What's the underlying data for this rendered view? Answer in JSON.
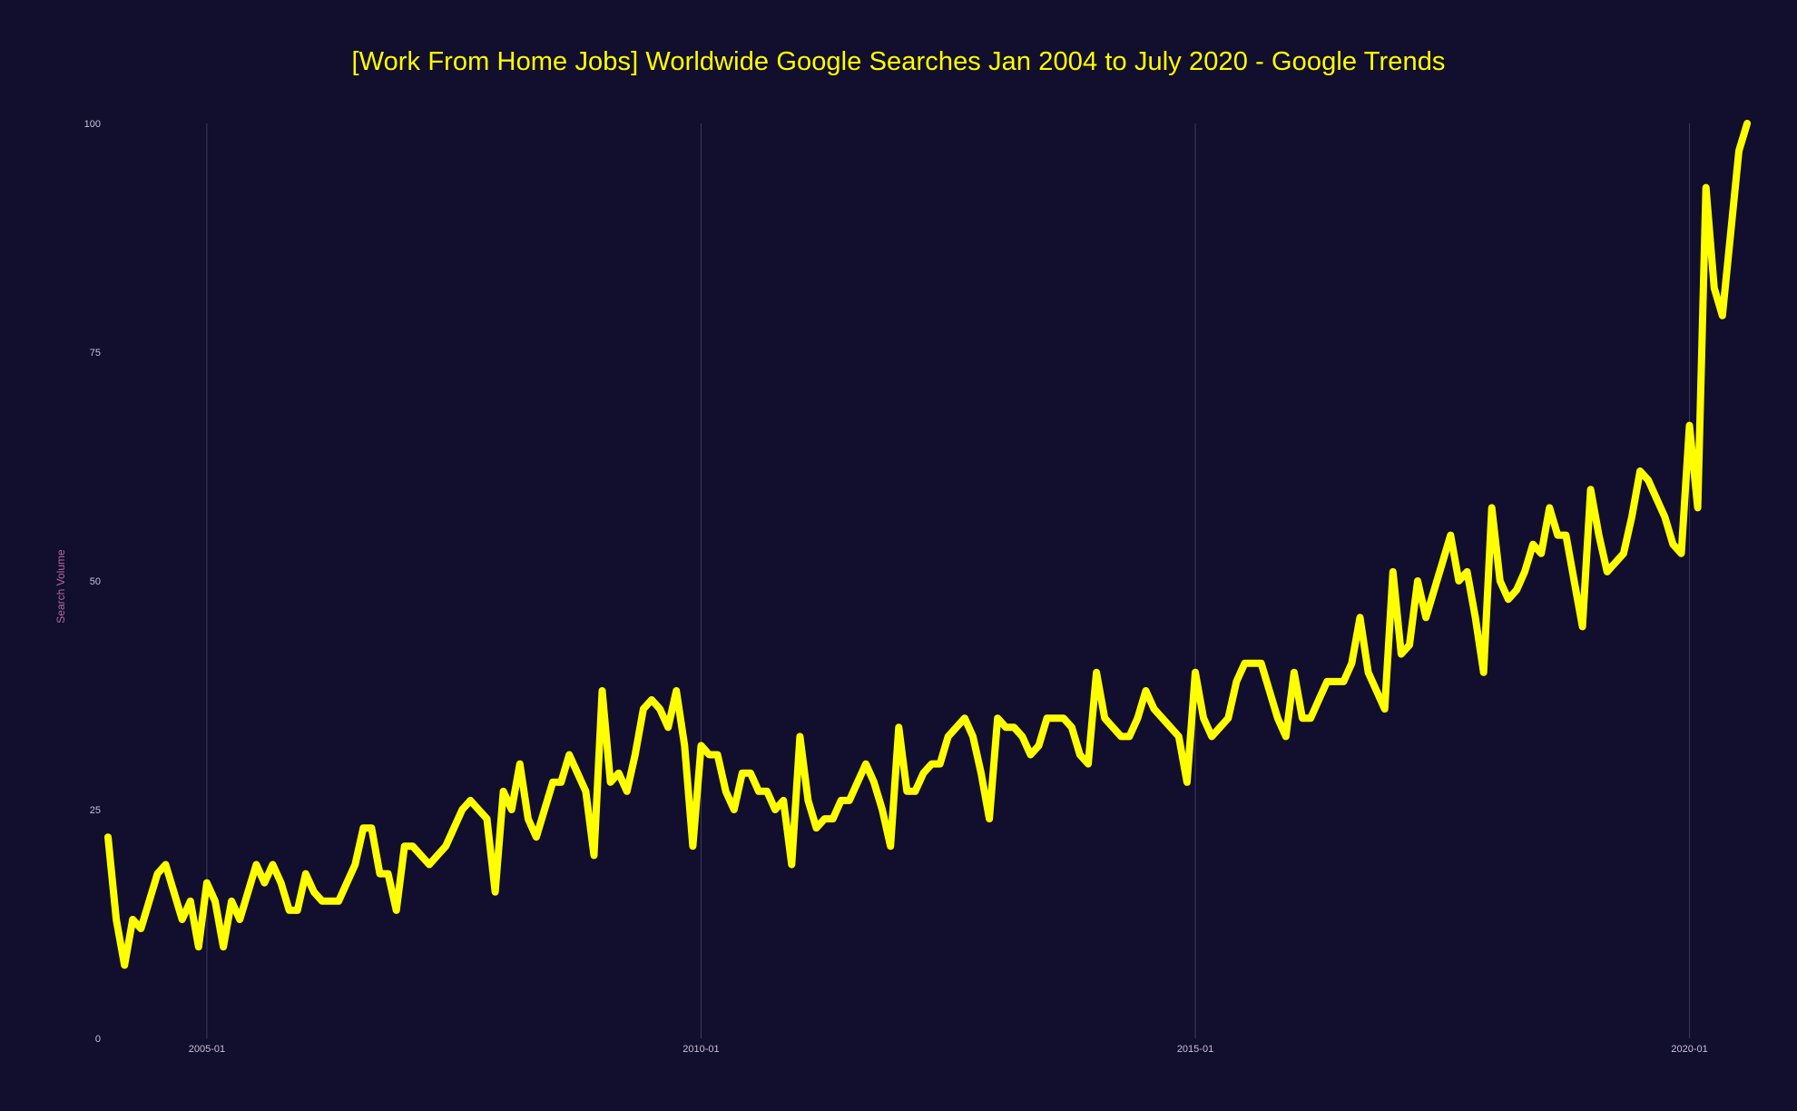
{
  "title": "[Work From Home Jobs] Worldwide Google Searches Jan 2004 to July 2020  - Google Trends",
  "colors": {
    "background": "#120e2e",
    "line": "#ffff00",
    "title": "#ffff00",
    "axis_title": "#b06aa0",
    "tick": "#c9bfd9",
    "grid": "#3d3a5c"
  },
  "chart_data": {
    "type": "line",
    "title": "[Work From Home Jobs] Worldwide Google Searches Jan 2004 to July 2020  - Google Trends",
    "xlabel": "",
    "ylabel": "Search Volume",
    "x_start": "2004-01",
    "x_end": "2020-07",
    "x_interval": "monthly",
    "xlim": [
      "2004-01",
      "2020-07"
    ],
    "ylim": [
      0,
      100
    ],
    "x_ticks": [
      "2005-01",
      "2010-01",
      "2015-01",
      "2020-01"
    ],
    "y_ticks": [
      0,
      25,
      50,
      75,
      100
    ],
    "grid": "vertical",
    "legend": "none",
    "series": [
      {
        "values": [
          22,
          13,
          8,
          13,
          12,
          15,
          18,
          19,
          16,
          13,
          15,
          10,
          17,
          15,
          10,
          15,
          13,
          16,
          19,
          17,
          19,
          17,
          14,
          14,
          18,
          16,
          15,
          15,
          15,
          17,
          19,
          23,
          23,
          18,
          18,
          14,
          21,
          21,
          20,
          19,
          20,
          21,
          23,
          25,
          26,
          25,
          24,
          16,
          27,
          25,
          30,
          24,
          22,
          25,
          28,
          28,
          31,
          29,
          27,
          20,
          38,
          28,
          29,
          27,
          31,
          36,
          37,
          36,
          34,
          38,
          32,
          21,
          32,
          31,
          31,
          27,
          25,
          29,
          29,
          27,
          27,
          25,
          26,
          19,
          33,
          26,
          23,
          24,
          24,
          26,
          26,
          28,
          30,
          28,
          25,
          21,
          34,
          27,
          27,
          29,
          30,
          30,
          33,
          34,
          35,
          33,
          29,
          24,
          35,
          34,
          34,
          33,
          31,
          32,
          35,
          35,
          35,
          34,
          31,
          30,
          40,
          35,
          34,
          33,
          33,
          35,
          38,
          36,
          35,
          34,
          33,
          28,
          40,
          35,
          33,
          34,
          35,
          39,
          41,
          41,
          41,
          38,
          35,
          33,
          40,
          35,
          35,
          37,
          39,
          39,
          39,
          41,
          46,
          40,
          38,
          36,
          51,
          42,
          43,
          50,
          46,
          49,
          52,
          55,
          50,
          51,
          46,
          40,
          58,
          50,
          48,
          49,
          51,
          54,
          53,
          58,
          55,
          55,
          50,
          45,
          60,
          55,
          51,
          52,
          53,
          57,
          62,
          61,
          59,
          57,
          54,
          53,
          67,
          58,
          93,
          82,
          79,
          88,
          97,
          100
        ]
      }
    ]
  }
}
